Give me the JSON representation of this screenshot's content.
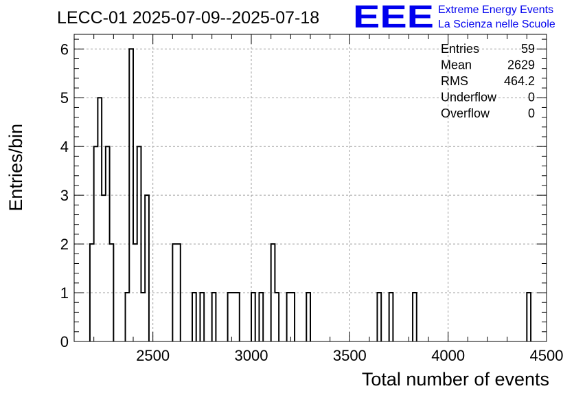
{
  "chart_data": {
    "type": "bar",
    "title": "LECC-01 2025-07-09--2025-07-18",
    "xlabel": "Total number of events",
    "ylabel": "Entries/bin",
    "xlim": [
      2100,
      4500
    ],
    "ylim": [
      0,
      6.3
    ],
    "bin_width": 20,
    "grid": true,
    "x_ticks": [
      2500,
      3000,
      3500,
      4000,
      4500
    ],
    "y_ticks": [
      0,
      1,
      2,
      3,
      4,
      5,
      6
    ],
    "bins": [
      {
        "x": 2180,
        "y": 2
      },
      {
        "x": 2200,
        "y": 4
      },
      {
        "x": 2220,
        "y": 5
      },
      {
        "x": 2240,
        "y": 3
      },
      {
        "x": 2260,
        "y": 4
      },
      {
        "x": 2280,
        "y": 2
      },
      {
        "x": 2360,
        "y": 1
      },
      {
        "x": 2380,
        "y": 6
      },
      {
        "x": 2400,
        "y": 2
      },
      {
        "x": 2420,
        "y": 4
      },
      {
        "x": 2440,
        "y": 1
      },
      {
        "x": 2460,
        "y": 3
      },
      {
        "x": 2600,
        "y": 2
      },
      {
        "x": 2620,
        "y": 2
      },
      {
        "x": 2700,
        "y": 1
      },
      {
        "x": 2740,
        "y": 1
      },
      {
        "x": 2800,
        "y": 1
      },
      {
        "x": 2880,
        "y": 1
      },
      {
        "x": 2900,
        "y": 1
      },
      {
        "x": 2920,
        "y": 1
      },
      {
        "x": 3000,
        "y": 1
      },
      {
        "x": 3040,
        "y": 1
      },
      {
        "x": 3100,
        "y": 2
      },
      {
        "x": 3120,
        "y": 1
      },
      {
        "x": 3180,
        "y": 1
      },
      {
        "x": 3200,
        "y": 1
      },
      {
        "x": 3280,
        "y": 1
      },
      {
        "x": 3640,
        "y": 1
      },
      {
        "x": 3700,
        "y": 1
      },
      {
        "x": 3820,
        "y": 1
      },
      {
        "x": 4400,
        "y": 1
      }
    ],
    "stats": [
      {
        "label": "Entries",
        "value": "59"
      },
      {
        "label": "Mean",
        "value": "2629"
      },
      {
        "label": "RMS",
        "value": "464.2"
      },
      {
        "label": "Underflow",
        "value": "0"
      },
      {
        "label": "Overflow",
        "value": "0"
      }
    ],
    "line_color": "#000000"
  },
  "logo": {
    "mark": "EEE",
    "line1": "Extreme Energy Events",
    "line2": "La Scienza nelle Scuole",
    "color": "#0000ee"
  }
}
